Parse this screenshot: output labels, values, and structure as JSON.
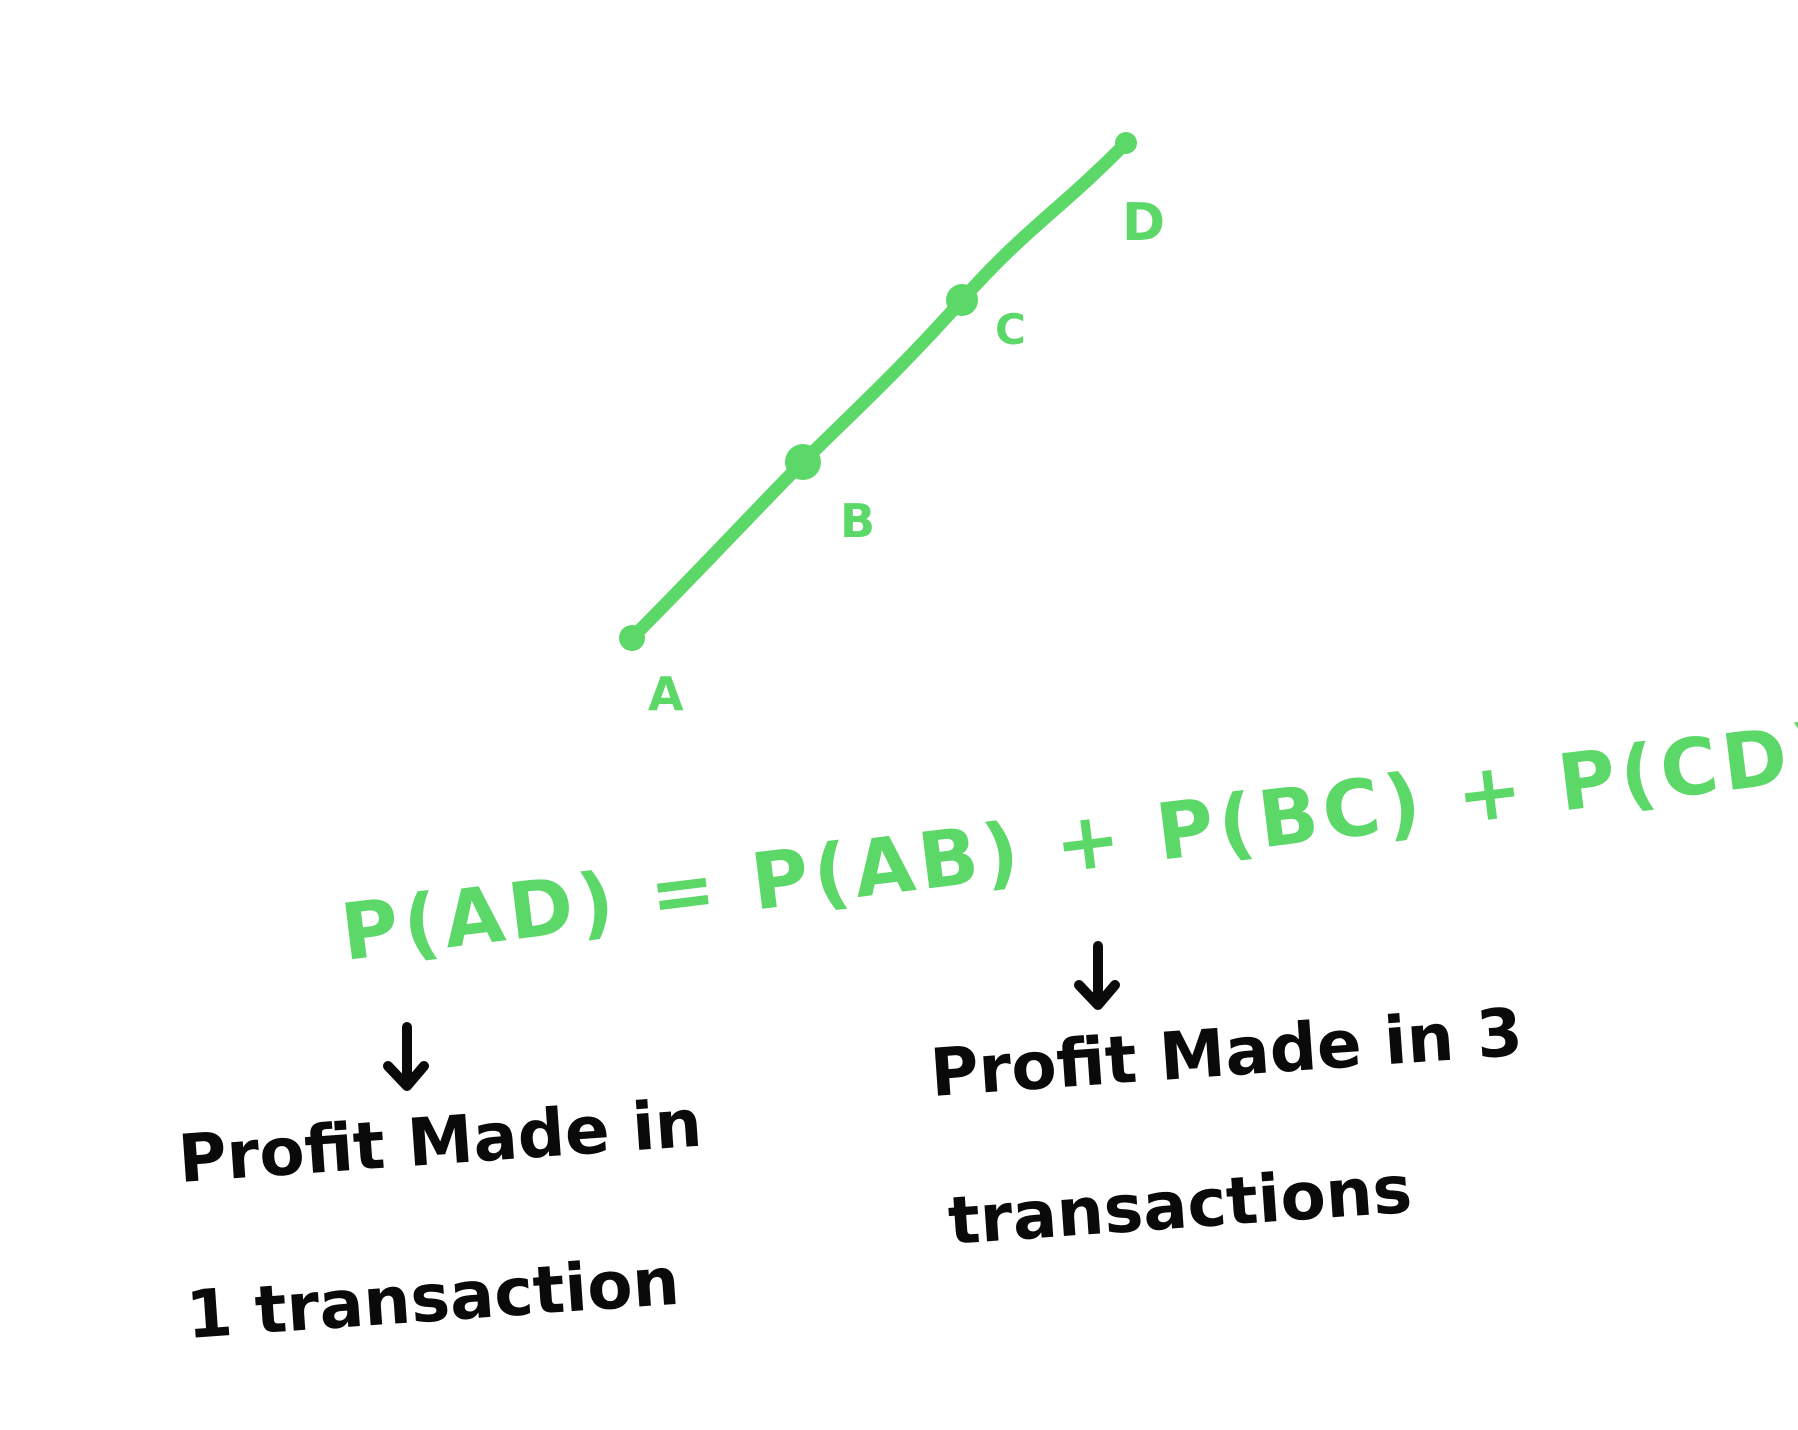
{
  "diagram": {
    "points": [
      {
        "label": "A"
      },
      {
        "label": "B"
      },
      {
        "label": "C"
      },
      {
        "label": "D"
      }
    ],
    "equation": "P(AD) = P(AB) + P(BC) + P(CD)",
    "annotations": [
      {
        "line1": "Profit Made in",
        "line2": "1 transaction"
      },
      {
        "line1": "Profit Made in 3",
        "line2": "transactions"
      }
    ],
    "colors": {
      "line": "#5cd869",
      "equation": "#5cd869",
      "annotation": "#0a0a0a",
      "background": "#ffffff"
    }
  }
}
